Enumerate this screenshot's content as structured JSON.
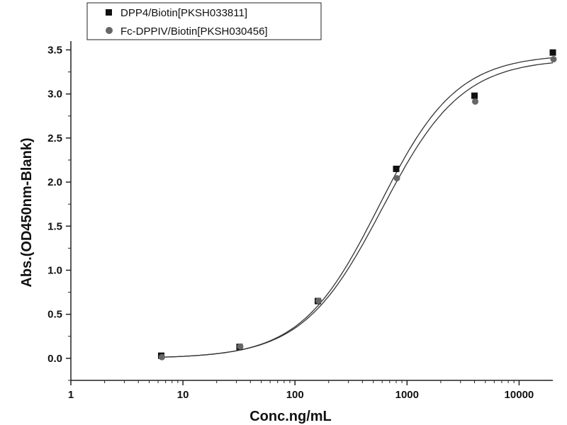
{
  "chart_data": {
    "type": "scatter",
    "x_scale": "log",
    "xlabel": "Conc.ng/mL",
    "ylabel": "Abs.(OD450nm-Blank)",
    "xlim": [
      1,
      20000
    ],
    "ylim": [
      -0.25,
      3.6
    ],
    "x_ticks": [
      1,
      10,
      100,
      1000,
      10000
    ],
    "x_tick_labels": [
      "1",
      "10",
      "100",
      "1000",
      "10000"
    ],
    "y_ticks": [
      0.0,
      0.5,
      1.0,
      1.5,
      2.0,
      2.5,
      3.0,
      3.5
    ],
    "y_tick_labels": [
      "0.0",
      "0.5",
      "1.0",
      "1.5",
      "2.0",
      "2.5",
      "3.0",
      "3.5"
    ],
    "legend_position": "top-left",
    "series": [
      {
        "name": "DPP4/Biotin[PKSH033811]",
        "marker": "square",
        "color": "#111111",
        "x": [
          6.4,
          32,
          160,
          800,
          4000,
          20000
        ],
        "y": [
          0.03,
          0.13,
          0.65,
          2.15,
          2.98,
          3.47
        ],
        "fit": true
      },
      {
        "name": "Fc-DPPIV/Biotin[PKSH030456]",
        "marker": "circle",
        "color": "#666666",
        "x": [
          6.4,
          32,
          160,
          800,
          4000,
          20000
        ],
        "y": [
          0.03,
          0.15,
          0.67,
          2.06,
          2.93,
          3.41
        ],
        "fit": true
      }
    ]
  }
}
